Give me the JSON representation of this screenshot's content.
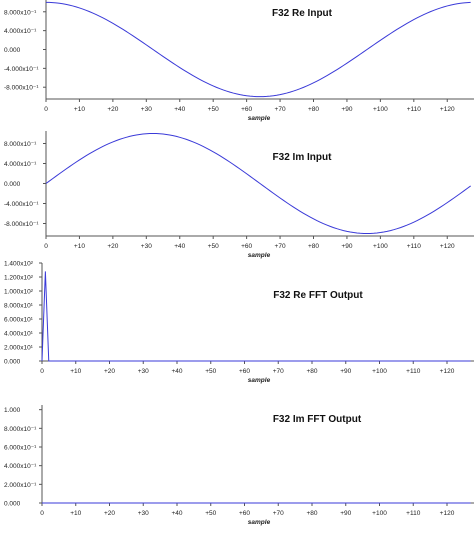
{
  "chart_data": [
    {
      "type": "line",
      "title": "F32 Re Input",
      "xlabel": "sample",
      "ylabel": "",
      "xlim": [
        0,
        128
      ],
      "ylim": [
        -1.05,
        1.05
      ],
      "x_ticks": [
        "0",
        "+10",
        "+20",
        "+30",
        "+40",
        "+50",
        "+60",
        "+70",
        "+80",
        "+90",
        "+100",
        "+110",
        "+120"
      ],
      "y_ticks": [
        {
          "v": 0.8,
          "label": "8.000x10⁻¹"
        },
        {
          "v": 0.4,
          "label": "4.000x10⁻¹"
        },
        {
          "v": 0.0,
          "label": "0.000"
        },
        {
          "v": -0.4,
          "label": "-4.000x10⁻¹"
        },
        {
          "v": -0.8,
          "label": "-8.000x10⁻¹"
        }
      ],
      "series": [
        {
          "function": "cos",
          "amplitude": 1.0,
          "period": 128,
          "n_samples": 128,
          "x": [
            0,
            16,
            32,
            48,
            64,
            80,
            96,
            112,
            127
          ],
          "values": [
            1.0,
            0.707,
            0.0,
            -0.707,
            -1.0,
            -0.707,
            0.0,
            0.707,
            0.999
          ]
        }
      ],
      "grid": false,
      "line_color": "#3a3ad8"
    },
    {
      "type": "line",
      "title": "F32 Im Input",
      "xlabel": "sample",
      "ylabel": "",
      "xlim": [
        0,
        128
      ],
      "ylim": [
        -1.05,
        1.05
      ],
      "x_ticks": [
        "0",
        "+10",
        "+20",
        "+30",
        "+40",
        "+50",
        "+60",
        "+70",
        "+80",
        "+90",
        "+100",
        "+110",
        "+120"
      ],
      "y_ticks": [
        {
          "v": 0.8,
          "label": "8.000x10⁻¹"
        },
        {
          "v": 0.4,
          "label": "4.000x10⁻¹"
        },
        {
          "v": 0.0,
          "label": "0.000"
        },
        {
          "v": -0.4,
          "label": "-4.000x10⁻¹"
        },
        {
          "v": -0.8,
          "label": "-8.000x10⁻¹"
        }
      ],
      "series": [
        {
          "function": "sin",
          "amplitude": 1.0,
          "period": 128,
          "n_samples": 128,
          "x": [
            0,
            16,
            32,
            48,
            64,
            80,
            96,
            112,
            127
          ],
          "values": [
            0.0,
            0.707,
            1.0,
            0.707,
            0.0,
            -0.707,
            -1.0,
            -0.707,
            -0.049
          ]
        }
      ],
      "grid": false,
      "line_color": "#3a3ad8"
    },
    {
      "type": "line",
      "title": "F32 Re FFT Output",
      "xlabel": "sample",
      "ylabel": "",
      "xlim": [
        0,
        128
      ],
      "ylim": [
        0,
        140
      ],
      "x_ticks": [
        "0",
        "+10",
        "+20",
        "+30",
        "+40",
        "+50",
        "+60",
        "+70",
        "+80",
        "+90",
        "+100",
        "+110",
        "+120"
      ],
      "y_ticks": [
        {
          "v": 140,
          "label": "1.400x10²"
        },
        {
          "v": 120,
          "label": "1.200x10²"
        },
        {
          "v": 100,
          "label": "1.000x10²"
        },
        {
          "v": 80,
          "label": "8.000x10¹"
        },
        {
          "v": 60,
          "label": "6.000x10¹"
        },
        {
          "v": 40,
          "label": "4.000x10¹"
        },
        {
          "v": 20,
          "label": "2.000x10¹"
        },
        {
          "v": 0,
          "label": "0.000"
        }
      ],
      "series": [
        {
          "x": [
            0,
            1,
            2,
            3,
            4,
            127
          ],
          "values": [
            0,
            128,
            0,
            0,
            0,
            0
          ]
        }
      ],
      "grid": false,
      "line_color": "#3a3ad8"
    },
    {
      "type": "line",
      "title": "F32 Im FFT Output",
      "xlabel": "sample",
      "ylabel": "",
      "xlim": [
        0,
        128
      ],
      "ylim": [
        0,
        1.05
      ],
      "x_ticks": [
        "0",
        "+10",
        "+20",
        "+30",
        "+40",
        "+50",
        "+60",
        "+70",
        "+80",
        "+90",
        "+100",
        "+110",
        "+120"
      ],
      "y_ticks": [
        {
          "v": 1.0,
          "label": "1.000"
        },
        {
          "v": 0.8,
          "label": "8.000x10⁻¹"
        },
        {
          "v": 0.6,
          "label": "6.000x10⁻¹"
        },
        {
          "v": 0.4,
          "label": "4.000x10⁻¹"
        },
        {
          "v": 0.2,
          "label": "2.000x10⁻¹"
        },
        {
          "v": 0.0,
          "label": "0.000"
        }
      ],
      "series": [
        {
          "x": [
            0,
            127
          ],
          "values": [
            0,
            0
          ]
        }
      ],
      "grid": false,
      "line_color": "#3a3ad8"
    }
  ]
}
